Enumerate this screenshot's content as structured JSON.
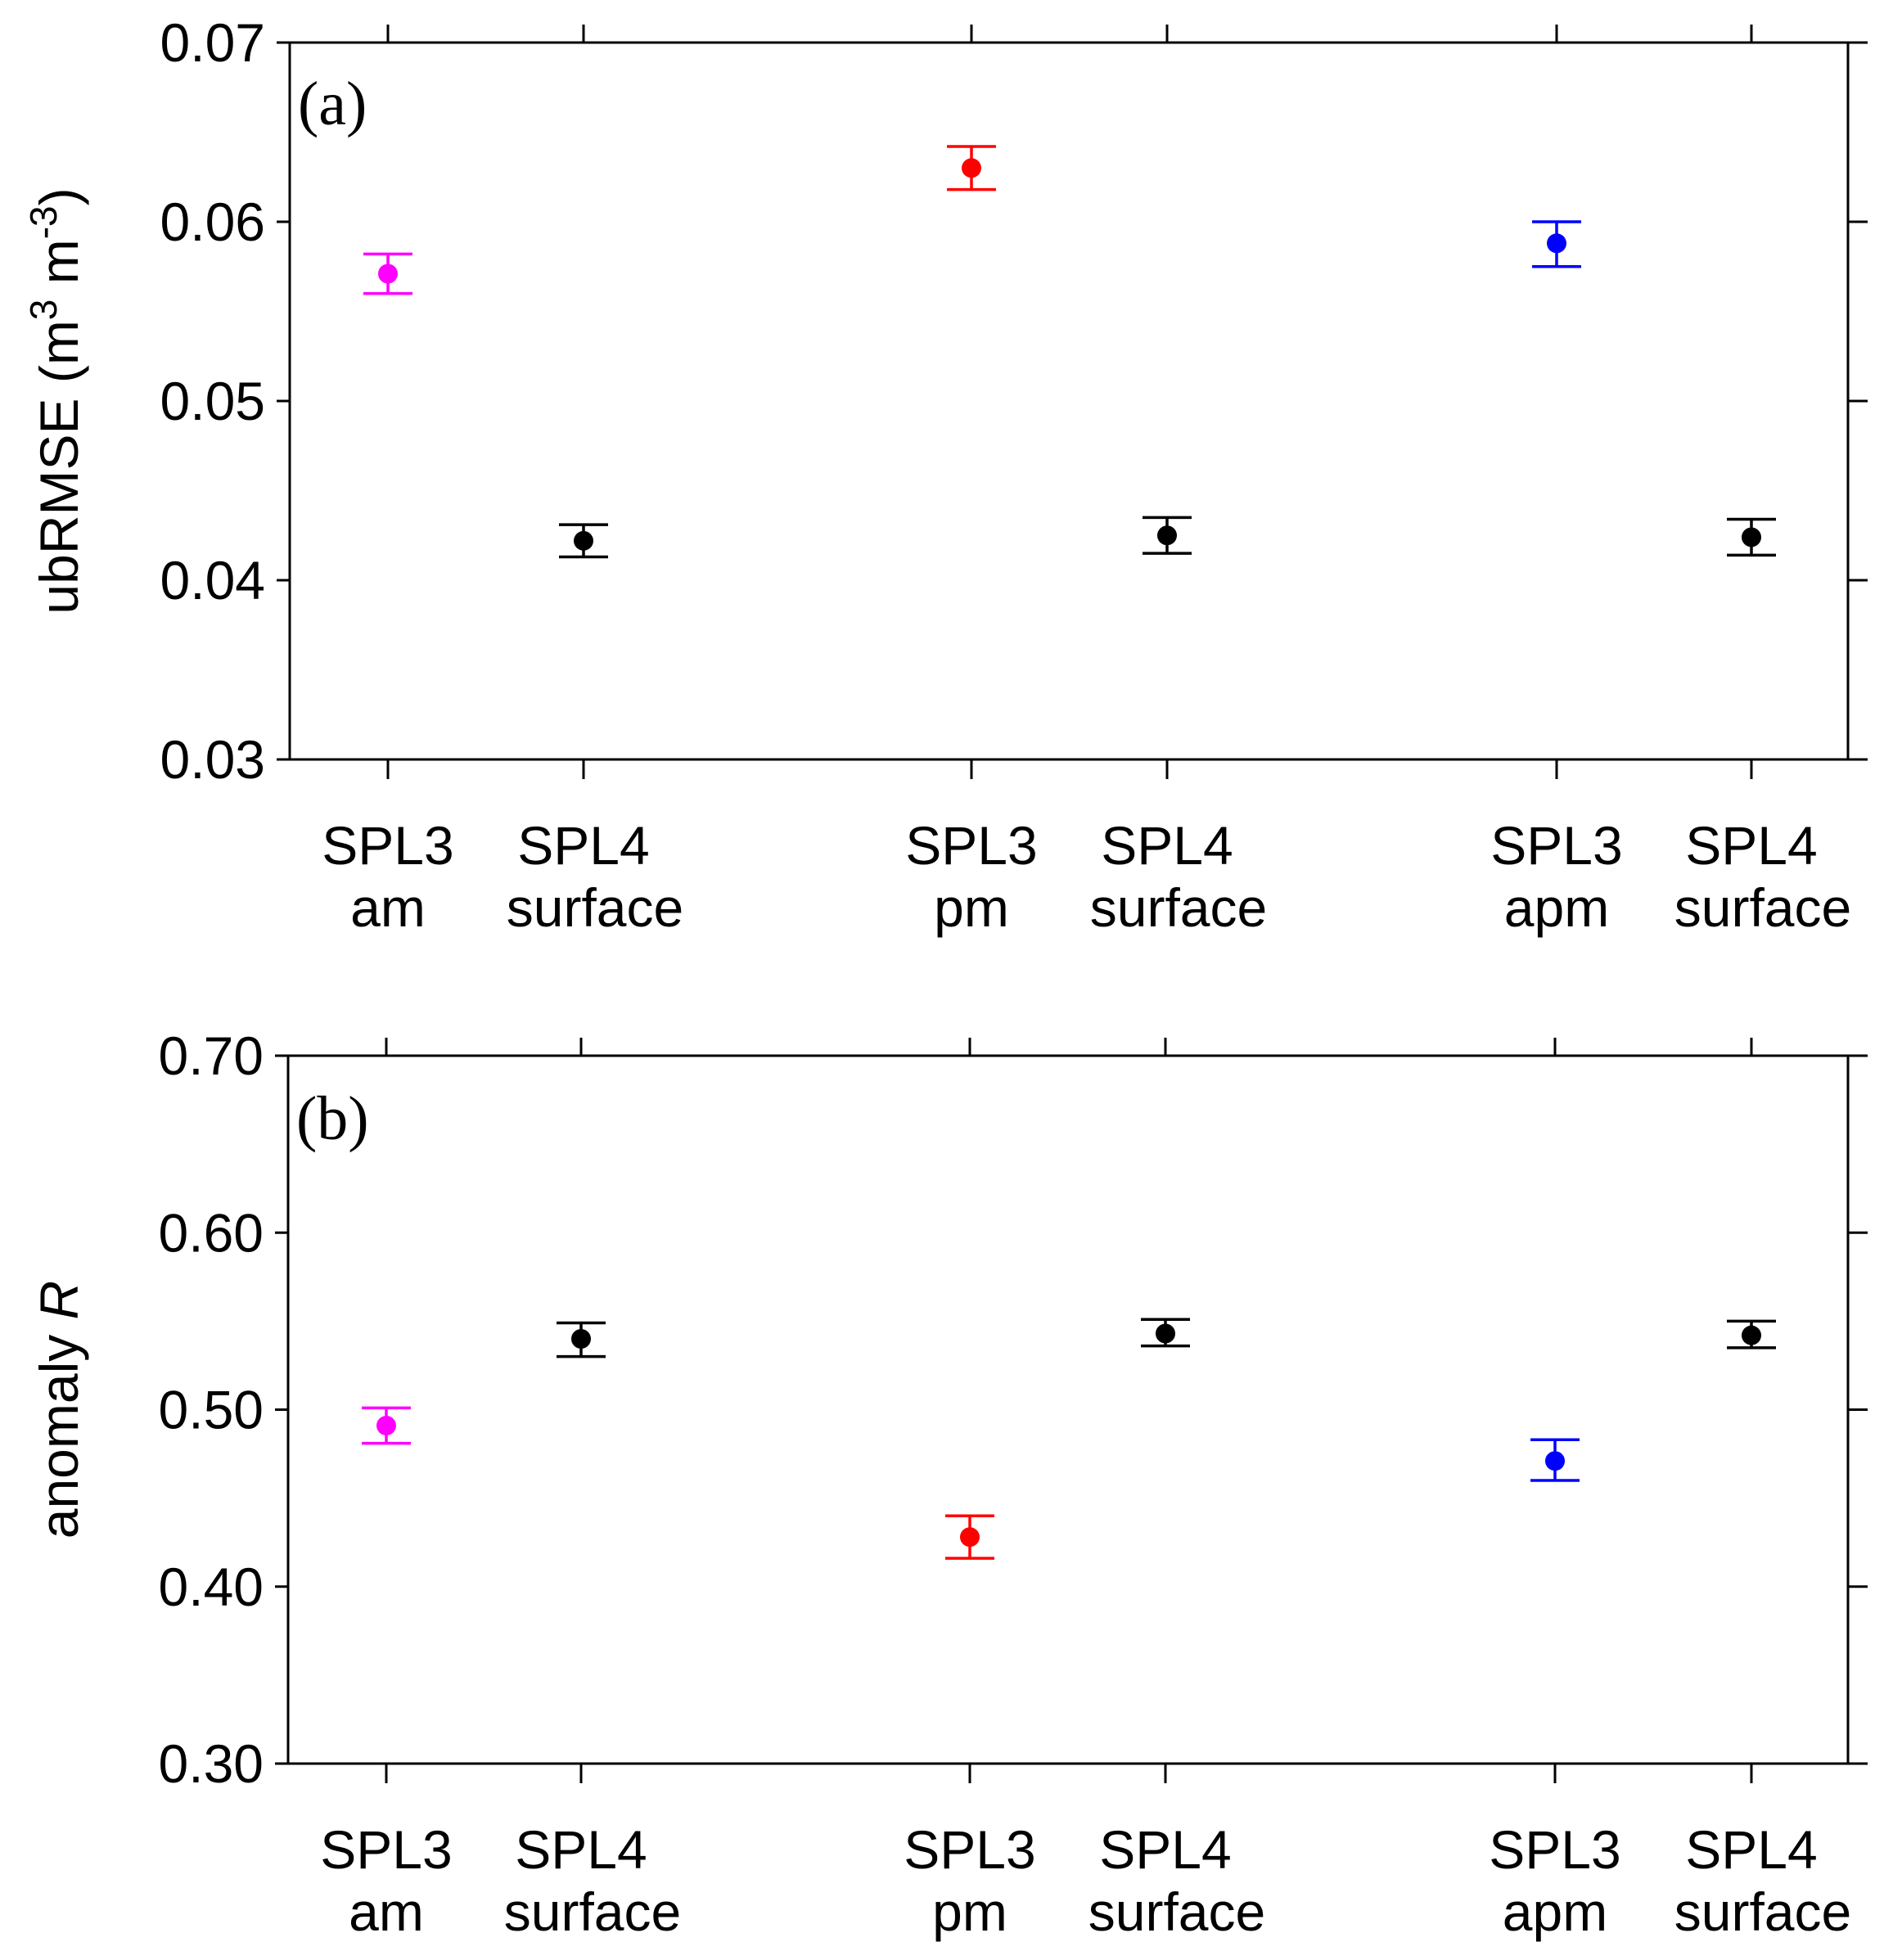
{
  "chart_data": [
    {
      "type": "scatter",
      "panel_label": "(a)",
      "ylabel_main": "ubRMSE (m",
      "ylabel_sup1": "3",
      "ylabel_mid": " m",
      "ylabel_sup2": "-3",
      "ylabel_end": ")",
      "ylim": [
        0.03,
        0.07
      ],
      "yticks": [
        "0.03",
        "0.04",
        "0.05",
        "0.06",
        "0.07"
      ],
      "ytick_values": [
        0.03,
        0.04,
        0.05,
        0.06,
        0.07
      ],
      "categories": [
        {
          "line1": "SPL3",
          "line2": "am"
        },
        {
          "line1": "SPL4",
          "line2": "surface"
        },
        {
          "line1": "SPL3",
          "line2": "pm"
        },
        {
          "line1": "SPL4",
          "line2": "surface"
        },
        {
          "line1": "SPL3",
          "line2": "apm"
        },
        {
          "line1": "SPL4",
          "line2": "surface"
        }
      ],
      "points": [
        {
          "value": 0.0571,
          "low": 0.056,
          "high": 0.0582,
          "color": "#ff00ff"
        },
        {
          "value": 0.0422,
          "low": 0.0413,
          "high": 0.0431,
          "color": "#000000"
        },
        {
          "value": 0.063,
          "low": 0.0618,
          "high": 0.0642,
          "color": "#ff0000"
        },
        {
          "value": 0.0425,
          "low": 0.0415,
          "high": 0.0435,
          "color": "#000000"
        },
        {
          "value": 0.0588,
          "low": 0.0575,
          "high": 0.06,
          "color": "#0000ff"
        },
        {
          "value": 0.0424,
          "low": 0.0414,
          "high": 0.0434,
          "color": "#000000"
        }
      ]
    },
    {
      "type": "scatter",
      "panel_label": "(b)",
      "ylabel_main": "anomaly ",
      "ylabel_italic": "R",
      "ylim": [
        0.3,
        0.7
      ],
      "yticks": [
        "0.30",
        "0.40",
        "0.50",
        "0.60",
        "0.70"
      ],
      "ytick_values": [
        0.3,
        0.4,
        0.5,
        0.6,
        0.7
      ],
      "categories": [
        {
          "line1": "SPL3",
          "line2": "am"
        },
        {
          "line1": "SPL4",
          "line2": "surface"
        },
        {
          "line1": "SPL3",
          "line2": "pm"
        },
        {
          "line1": "SPL4",
          "line2": "surface"
        },
        {
          "line1": "SPL3",
          "line2": "apm"
        },
        {
          "line1": "SPL4",
          "line2": "surface"
        }
      ],
      "points": [
        {
          "value": 0.491,
          "low": 0.481,
          "high": 0.501,
          "color": "#ff00ff"
        },
        {
          "value": 0.54,
          "low": 0.53,
          "high": 0.549,
          "color": "#000000"
        },
        {
          "value": 0.428,
          "low": 0.416,
          "high": 0.44,
          "color": "#ff0000"
        },
        {
          "value": 0.543,
          "low": 0.536,
          "high": 0.551,
          "color": "#000000"
        },
        {
          "value": 0.471,
          "low": 0.46,
          "high": 0.483,
          "color": "#0000ff"
        },
        {
          "value": 0.542,
          "low": 0.535,
          "high": 0.55,
          "color": "#000000"
        }
      ]
    }
  ]
}
